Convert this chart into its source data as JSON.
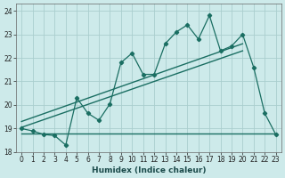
{
  "xlabel": "Humidex (Indice chaleur)",
  "ylabel": "",
  "xlim": [
    -0.5,
    23.5
  ],
  "ylim": [
    18,
    24.3
  ],
  "yticks": [
    18,
    19,
    20,
    21,
    22,
    23,
    24
  ],
  "xticks": [
    0,
    1,
    2,
    3,
    4,
    5,
    6,
    7,
    8,
    9,
    10,
    11,
    12,
    13,
    14,
    15,
    16,
    17,
    18,
    19,
    20,
    21,
    22,
    23
  ],
  "main_x": [
    0,
    1,
    2,
    3,
    4,
    5,
    6,
    7,
    8,
    9,
    10,
    11,
    12,
    13,
    14,
    15,
    16,
    17,
    18,
    19,
    20,
    21,
    22,
    23
  ],
  "main_y": [
    19.0,
    18.9,
    18.75,
    18.7,
    18.3,
    20.3,
    19.65,
    19.35,
    20.05,
    21.8,
    22.2,
    21.3,
    21.3,
    22.6,
    23.1,
    23.4,
    22.8,
    23.8,
    22.3,
    22.5,
    23.0,
    21.6,
    19.65,
    18.75
  ],
  "flat_line_x": [
    0,
    23
  ],
  "flat_line_y": [
    18.8,
    18.8
  ],
  "trend_x": [
    0,
    20
  ],
  "trend_y": [
    19.05,
    22.3
  ],
  "trend2_x": [
    0,
    20
  ],
  "trend2_y": [
    19.3,
    22.6
  ],
  "color": "#1a6e62",
  "bg_color": "#cdeaea",
  "grid_color": "#aacece"
}
